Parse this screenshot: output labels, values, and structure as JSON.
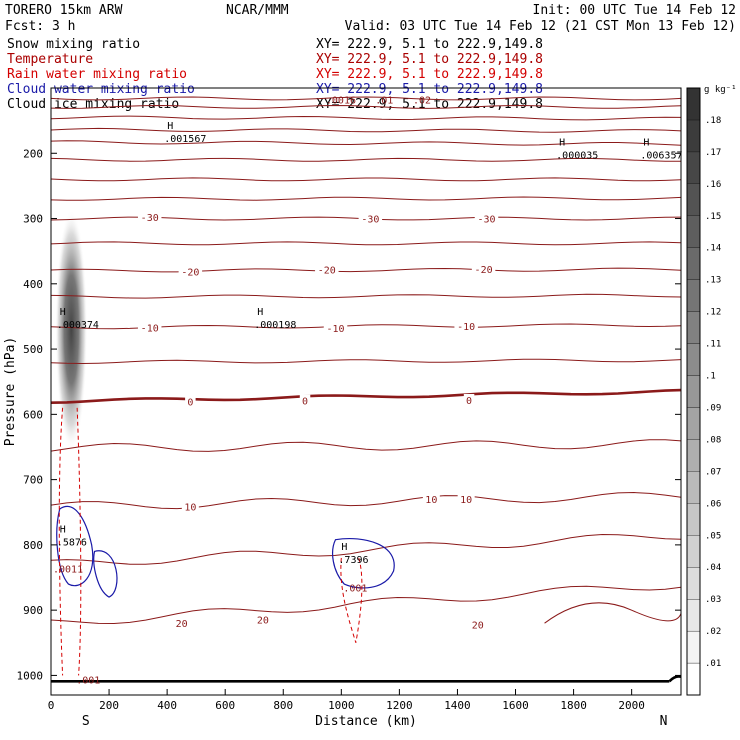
{
  "header": {
    "model": "TORERO  15km ARW",
    "institution": "NCAR/MMM",
    "init": "Init: 00 UTC Tue 14 Feb 12",
    "fcst": "Fcst:    3 h",
    "valid": "Valid: 03 UTC Tue 14 Feb 12 (21 CST Mon 13 Feb 12)",
    "legend": [
      {
        "name": "Snow mixing ratio",
        "color": "#000000",
        "xy": "XY= 222.9,  5.1 to 222.9,149.8"
      },
      {
        "name": "Temperature",
        "color": "#aa0000",
        "xy": "XY= 222.9,  5.1 to 222.9,149.8"
      },
      {
        "name": "Rain water mixing ratio",
        "color": "#d40000",
        "xy": "XY= 222.9,  5.1 to 222.9,149.8"
      },
      {
        "name": "Cloud water mixing ratio",
        "color": "#1a1aa8",
        "xy": "XY= 222.9,  5.1 to 222.9,149.8"
      },
      {
        "name": "Cloud ice mixing ratio",
        "color": "#000000",
        "xy": "XY= 222.9,  5.1 to 222.9,149.8"
      }
    ]
  },
  "chart_data": {
    "type": "contour cross-section",
    "xlabel": "Distance (km)",
    "ylabel": "Pressure (hPa)",
    "xlim": [
      0,
      2170
    ],
    "ylim": [
      1030,
      100
    ],
    "x_ticks": [
      0,
      200,
      400,
      600,
      800,
      1000,
      1200,
      1400,
      1600,
      1800,
      2000
    ],
    "y_ticks": [
      200,
      300,
      400,
      500,
      600,
      700,
      800,
      900,
      1000
    ],
    "end_labels": {
      "left": "S",
      "right": "N"
    },
    "colorbar": {
      "unit": "g kg⁻¹",
      "levels": [
        ".01",
        ".02",
        ".03",
        ".04",
        ".05",
        ".06",
        ".07",
        ".08",
        ".09",
        ".1",
        ".11",
        ".12",
        ".13",
        ".14",
        ".15",
        ".16",
        ".17",
        ".18"
      ]
    },
    "temperature_labels": [
      {
        "label": "-30",
        "x": 340,
        "p": 298
      },
      {
        "label": "-30",
        "x": 1100,
        "p": 300
      },
      {
        "label": "-30",
        "x": 1500,
        "p": 300
      },
      {
        "label": "-20",
        "x": 480,
        "p": 381
      },
      {
        "label": "-20",
        "x": 950,
        "p": 378
      },
      {
        "label": "-20",
        "x": 1490,
        "p": 377
      },
      {
        "label": "-10",
        "x": 340,
        "p": 467
      },
      {
        "label": "-10",
        "x": 980,
        "p": 468
      },
      {
        "label": "-10",
        "x": 1430,
        "p": 465
      },
      {
        "label": "0",
        "x": 480,
        "p": 580
      },
      {
        "label": "0",
        "x": 875,
        "p": 579
      },
      {
        "label": "0",
        "x": 1440,
        "p": 578
      },
      {
        "label": "10",
        "x": 480,
        "p": 741
      },
      {
        "label": "10",
        "x": 1310,
        "p": 730
      },
      {
        "label": "10",
        "x": 1430,
        "p": 730
      },
      {
        "label": "20",
        "x": 450,
        "p": 920
      },
      {
        "label": "20",
        "x": 730,
        "p": 914
      },
      {
        "label": "20",
        "x": 1470,
        "p": 922
      }
    ],
    "extrema": [
      {
        "label": "H",
        "value": ".001567",
        "x": 390,
        "p": 175
      },
      {
        "label": "H",
        "value": ".000035",
        "x": 1740,
        "p": 200
      },
      {
        "label": "H",
        "value": ".006357",
        "x": 2030,
        "p": 200
      },
      {
        "label": "H",
        "value": ".000374",
        "x": 20,
        "p": 460
      },
      {
        "label": "H",
        "value": ".000198",
        "x": 700,
        "p": 460
      },
      {
        "label": "H",
        "value": ".5876",
        "x": 20,
        "p": 793
      },
      {
        "label": "H",
        "value": ".7396",
        "x": 990,
        "p": 820
      }
    ],
    "partial_labels": [
      {
        "text": ".0016",
        "x": 940,
        "p": 118
      },
      {
        "text": ".01",
        "x": 1110,
        "p": 118
      },
      {
        "text": ".02",
        "x": 1240,
        "p": 118
      },
      {
        "text": ".0011",
        "x": 0,
        "p": 836
      },
      {
        "text": ".001",
        "x": 1000,
        "p": 865
      },
      {
        "text": ".001",
        "x": 80,
        "p": 1006
      }
    ]
  }
}
